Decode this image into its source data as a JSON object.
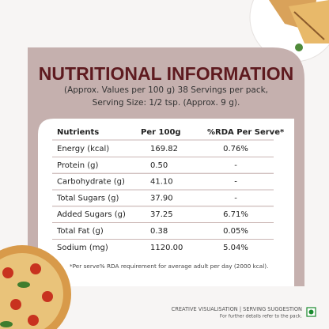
{
  "header": {
    "title": "NUTRITIONAL INFORMATION",
    "subtitle_lines": [
      "(Approx. Values per 100 g) 38 Servings per pack,",
      "Serving Size: 1/2 tsp. (Approx. 9 g)."
    ]
  },
  "table": {
    "columns": [
      "Nutrients",
      "Per 100g",
      "%RDA Per Serve*"
    ],
    "rows": [
      [
        "Energy (kcal)",
        "169.82",
        "0.76%"
      ],
      [
        "Protein (g)",
        "0.50",
        "-"
      ],
      [
        "Carbohydrate (g)",
        "41.10",
        "-"
      ],
      [
        "Total Sugars (g)",
        "37.90",
        "-"
      ],
      [
        "Added Sugars (g)",
        "37.25",
        "6.71%"
      ],
      [
        "Total Fat (g)",
        "0.38",
        "0.05%"
      ],
      [
        "Sodium (mg)",
        "1120.00",
        "5.04%"
      ]
    ]
  },
  "footnote": "*Per serve% RDA requirement for average adult per day (2000 kcal).",
  "caption": {
    "line1": "CREATIVE VISUALISATION | SERVING SUGGESTION",
    "line2": "For further details refer to the pack."
  }
}
